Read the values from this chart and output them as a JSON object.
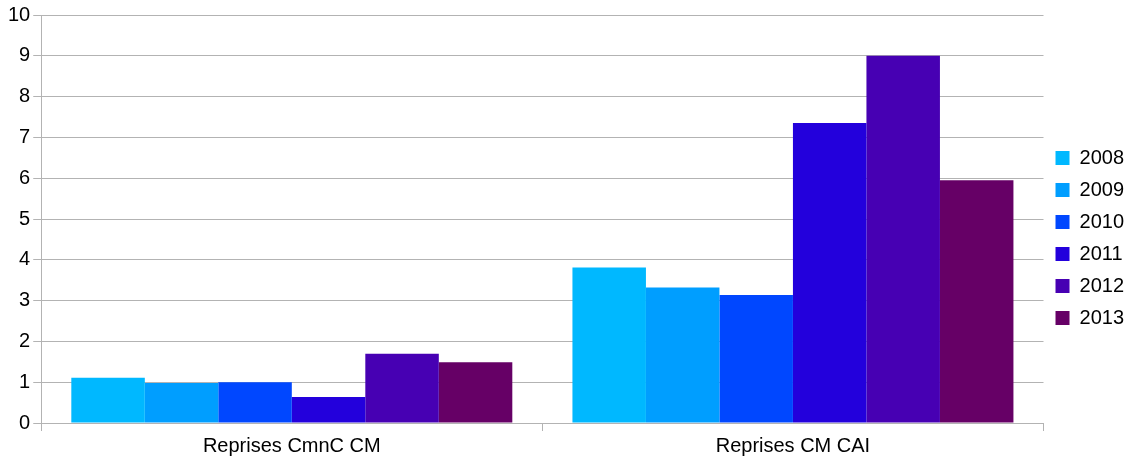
{
  "chart_data": {
    "type": "bar",
    "categories": [
      "Reprises CmnC CM",
      "Reprises CM CAI"
    ],
    "series": [
      {
        "name": "2008",
        "color": "#00b8ff",
        "values": [
          1.11,
          3.81
        ]
      },
      {
        "name": "2009",
        "color": "#009eff",
        "values": [
          0.98,
          3.32
        ]
      },
      {
        "name": "2010",
        "color": "#0047ff",
        "values": [
          1.0,
          3.14
        ]
      },
      {
        "name": "2011",
        "color": "#2300dc",
        "values": [
          0.64,
          7.35
        ]
      },
      {
        "name": "2012",
        "color": "#4700b3",
        "values": [
          1.7,
          9.0
        ]
      },
      {
        "name": "2013",
        "color": "#660066",
        "values": [
          1.49,
          5.95
        ]
      }
    ],
    "ylim": [
      0,
      10
    ],
    "yticks": [
      0,
      1,
      2,
      3,
      4,
      5,
      6,
      7,
      8,
      9,
      10
    ],
    "grid": "y",
    "legend": "right"
  }
}
